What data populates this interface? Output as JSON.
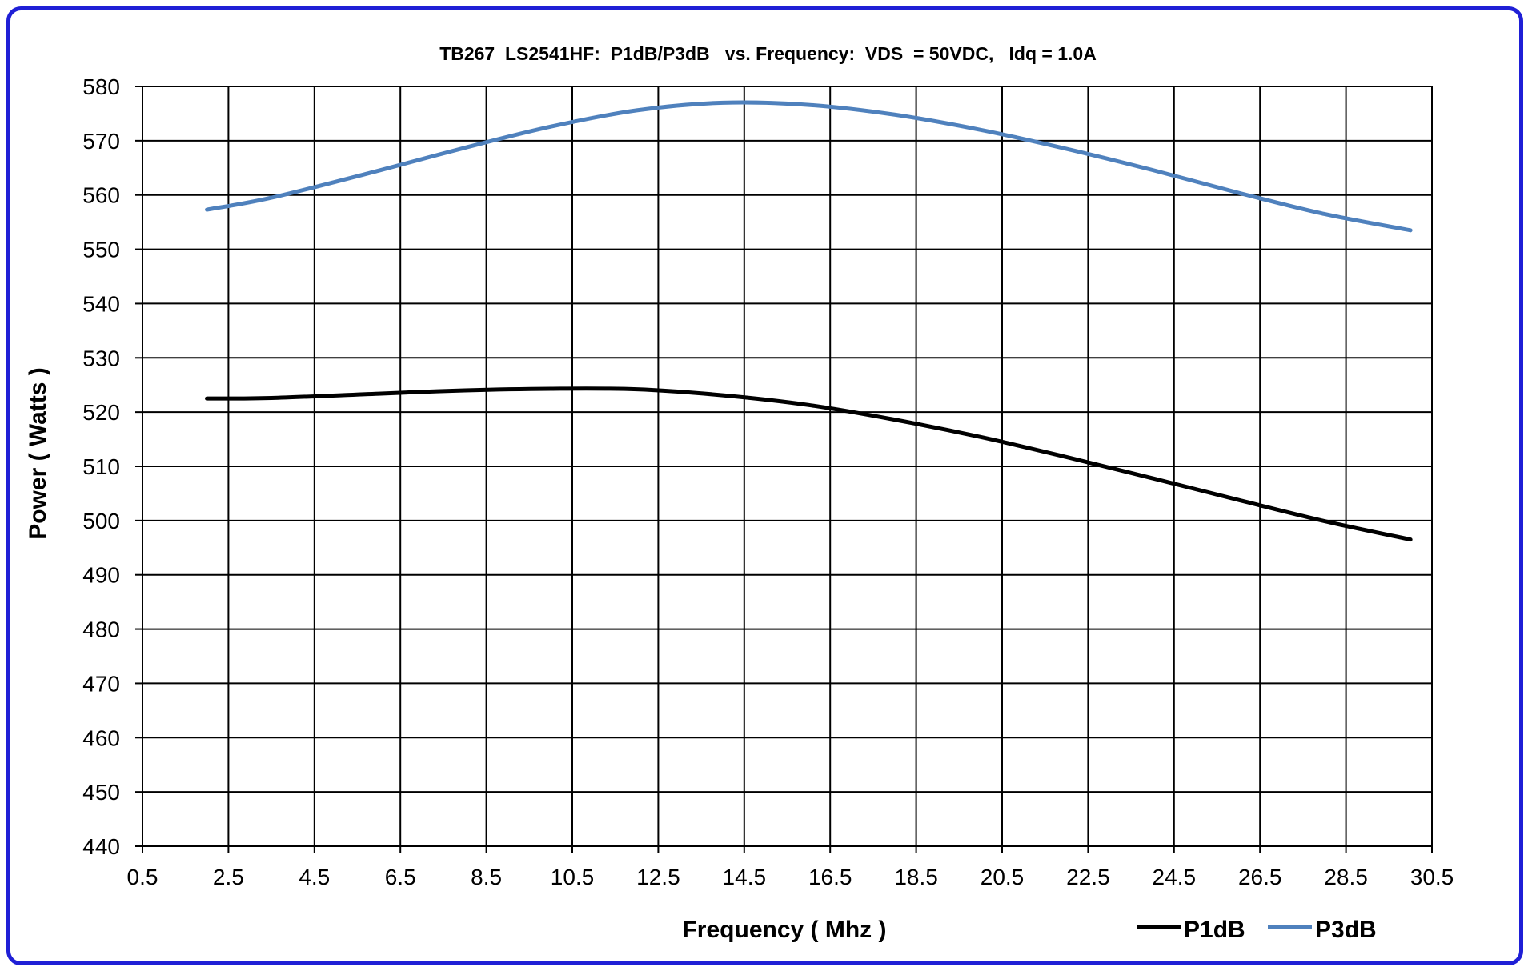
{
  "chart_data": {
    "type": "line",
    "title": "TB267  LS2541HF:  P1dB/P3dB   vs. Frequency:  VDS  = 50VDC,   Idq = 1.0A",
    "xlabel": "Frequency ( Mhz )",
    "ylabel": "Power ( Watts )",
    "xlim": [
      0.5,
      30.5
    ],
    "ylim": [
      440,
      580
    ],
    "xticks": [
      "0.5",
      "2.5",
      "4.5",
      "6.5",
      "8.5",
      "10.5",
      "12.5",
      "14.5",
      "16.5",
      "18.5",
      "20.5",
      "22.5",
      "24.5",
      "26.5",
      "28.5",
      "30.5"
    ],
    "yticks": [
      "440",
      "450",
      "460",
      "470",
      "480",
      "490",
      "500",
      "510",
      "520",
      "530",
      "540",
      "550",
      "560",
      "570",
      "580"
    ],
    "grid": true,
    "legend_position": "bottom-right",
    "series": [
      {
        "name": "P1dB",
        "color": "#000000",
        "x": [
          2,
          3.5,
          6,
          8,
          10,
          12,
          14,
          16,
          18,
          20,
          22,
          24,
          26,
          28,
          30
        ],
        "y": [
          522.5,
          522.6,
          523.4,
          524.0,
          524.3,
          524.2,
          523.1,
          521.3,
          518.6,
          515.4,
          511.7,
          507.8,
          503.8,
          499.9,
          496.5
        ]
      },
      {
        "name": "P3dB",
        "color": "#4f81bd",
        "x": [
          2,
          3.5,
          6,
          8,
          10,
          12,
          14,
          16,
          18,
          20,
          22,
          24,
          26,
          28,
          30
        ],
        "y": [
          557.3,
          559.5,
          564.5,
          568.7,
          572.6,
          575.6,
          577.0,
          576.6,
          574.8,
          572.0,
          568.5,
          564.6,
          560.4,
          556.5,
          553.5
        ]
      }
    ]
  }
}
